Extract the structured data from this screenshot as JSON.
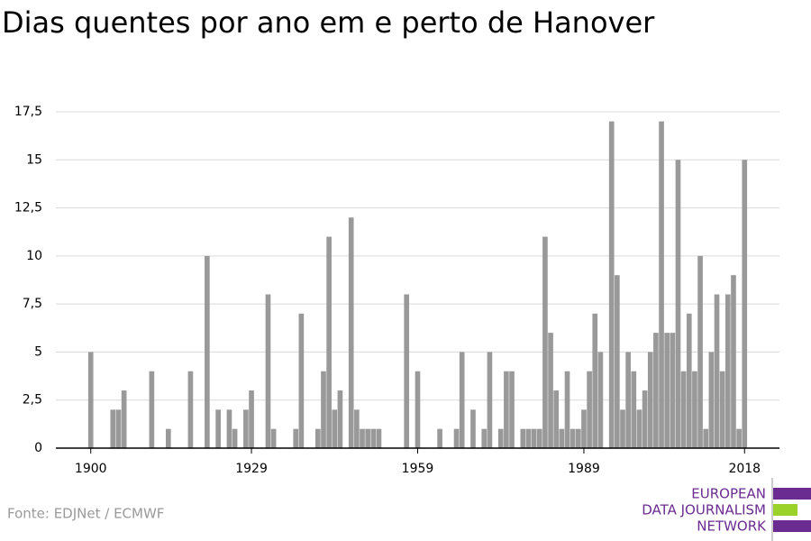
{
  "chart_data": {
    "type": "bar",
    "title": "Dias quentes por ano em e perto de Hanover",
    "source": "Fonte: EDJNet / ECMWF",
    "logo": [
      "EUROPEAN",
      "DATA JOURNALISM",
      "NETWORK"
    ],
    "color": "#999999",
    "grid": true,
    "x": [
      1900,
      1901,
      1902,
      1903,
      1904,
      1905,
      1906,
      1907,
      1908,
      1909,
      1910,
      1911,
      1912,
      1913,
      1914,
      1915,
      1916,
      1917,
      1918,
      1919,
      1920,
      1921,
      1922,
      1923,
      1924,
      1925,
      1926,
      1927,
      1928,
      1929,
      1930,
      1931,
      1932,
      1933,
      1934,
      1935,
      1936,
      1937,
      1938,
      1939,
      1940,
      1941,
      1942,
      1943,
      1944,
      1945,
      1946,
      1947,
      1948,
      1949,
      1950,
      1951,
      1952,
      1953,
      1954,
      1955,
      1956,
      1957,
      1958,
      1959,
      1960,
      1961,
      1962,
      1963,
      1964,
      1965,
      1966,
      1967,
      1968,
      1969,
      1970,
      1971,
      1972,
      1973,
      1974,
      1975,
      1976,
      1977,
      1978,
      1979,
      1980,
      1981,
      1982,
      1983,
      1984,
      1985,
      1986,
      1987,
      1988,
      1989,
      1990,
      1991,
      1992,
      1993,
      1994,
      1995,
      1996,
      1997,
      1998,
      1999,
      2000,
      2001,
      2002,
      2003,
      2004,
      2005,
      2006,
      2007,
      2008,
      2009,
      2010,
      2011,
      2012,
      2013,
      2014,
      2015,
      2016,
      2017,
      2018
    ],
    "values": [
      5,
      0,
      0,
      0,
      2,
      2,
      3,
      0,
      0,
      0,
      0,
      4,
      0,
      0,
      1,
      0,
      0,
      0,
      4,
      0,
      0,
      10,
      0,
      2,
      0,
      2,
      1,
      0,
      2,
      3,
      0,
      0,
      8,
      1,
      0,
      0,
      0,
      1,
      7,
      0,
      0,
      1,
      4,
      11,
      2,
      3,
      0,
      12,
      2,
      1,
      1,
      1,
      1,
      0,
      0,
      0,
      0,
      8,
      0,
      4,
      0,
      0,
      0,
      1,
      0,
      0,
      1,
      5,
      0,
      2,
      0,
      1,
      5,
      0,
      1,
      4,
      4,
      0,
      1,
      1,
      1,
      1,
      11,
      6,
      3,
      1,
      4,
      1,
      1,
      2,
      4,
      7,
      5,
      0,
      17,
      9,
      2,
      5,
      4,
      2,
      3,
      5,
      6,
      17,
      6,
      6,
      15,
      4,
      7,
      4,
      10,
      1,
      5,
      8,
      4,
      8,
      9,
      1,
      15
    ],
    "xlim": [
      1893.7,
      2024.3
    ],
    "xticks": [
      1900,
      1929,
      1959,
      1989,
      2018
    ],
    "ylim": [
      0,
      17.5
    ],
    "yticks": [
      0,
      {
        "value": 2.5,
        "label": "2,5"
      },
      5,
      {
        "value": 7.5,
        "label": "7,5"
      },
      10,
      {
        "value": 12.5,
        "label": "12,5"
      },
      15,
      {
        "value": 17.5,
        "label": "17,5"
      }
    ]
  }
}
